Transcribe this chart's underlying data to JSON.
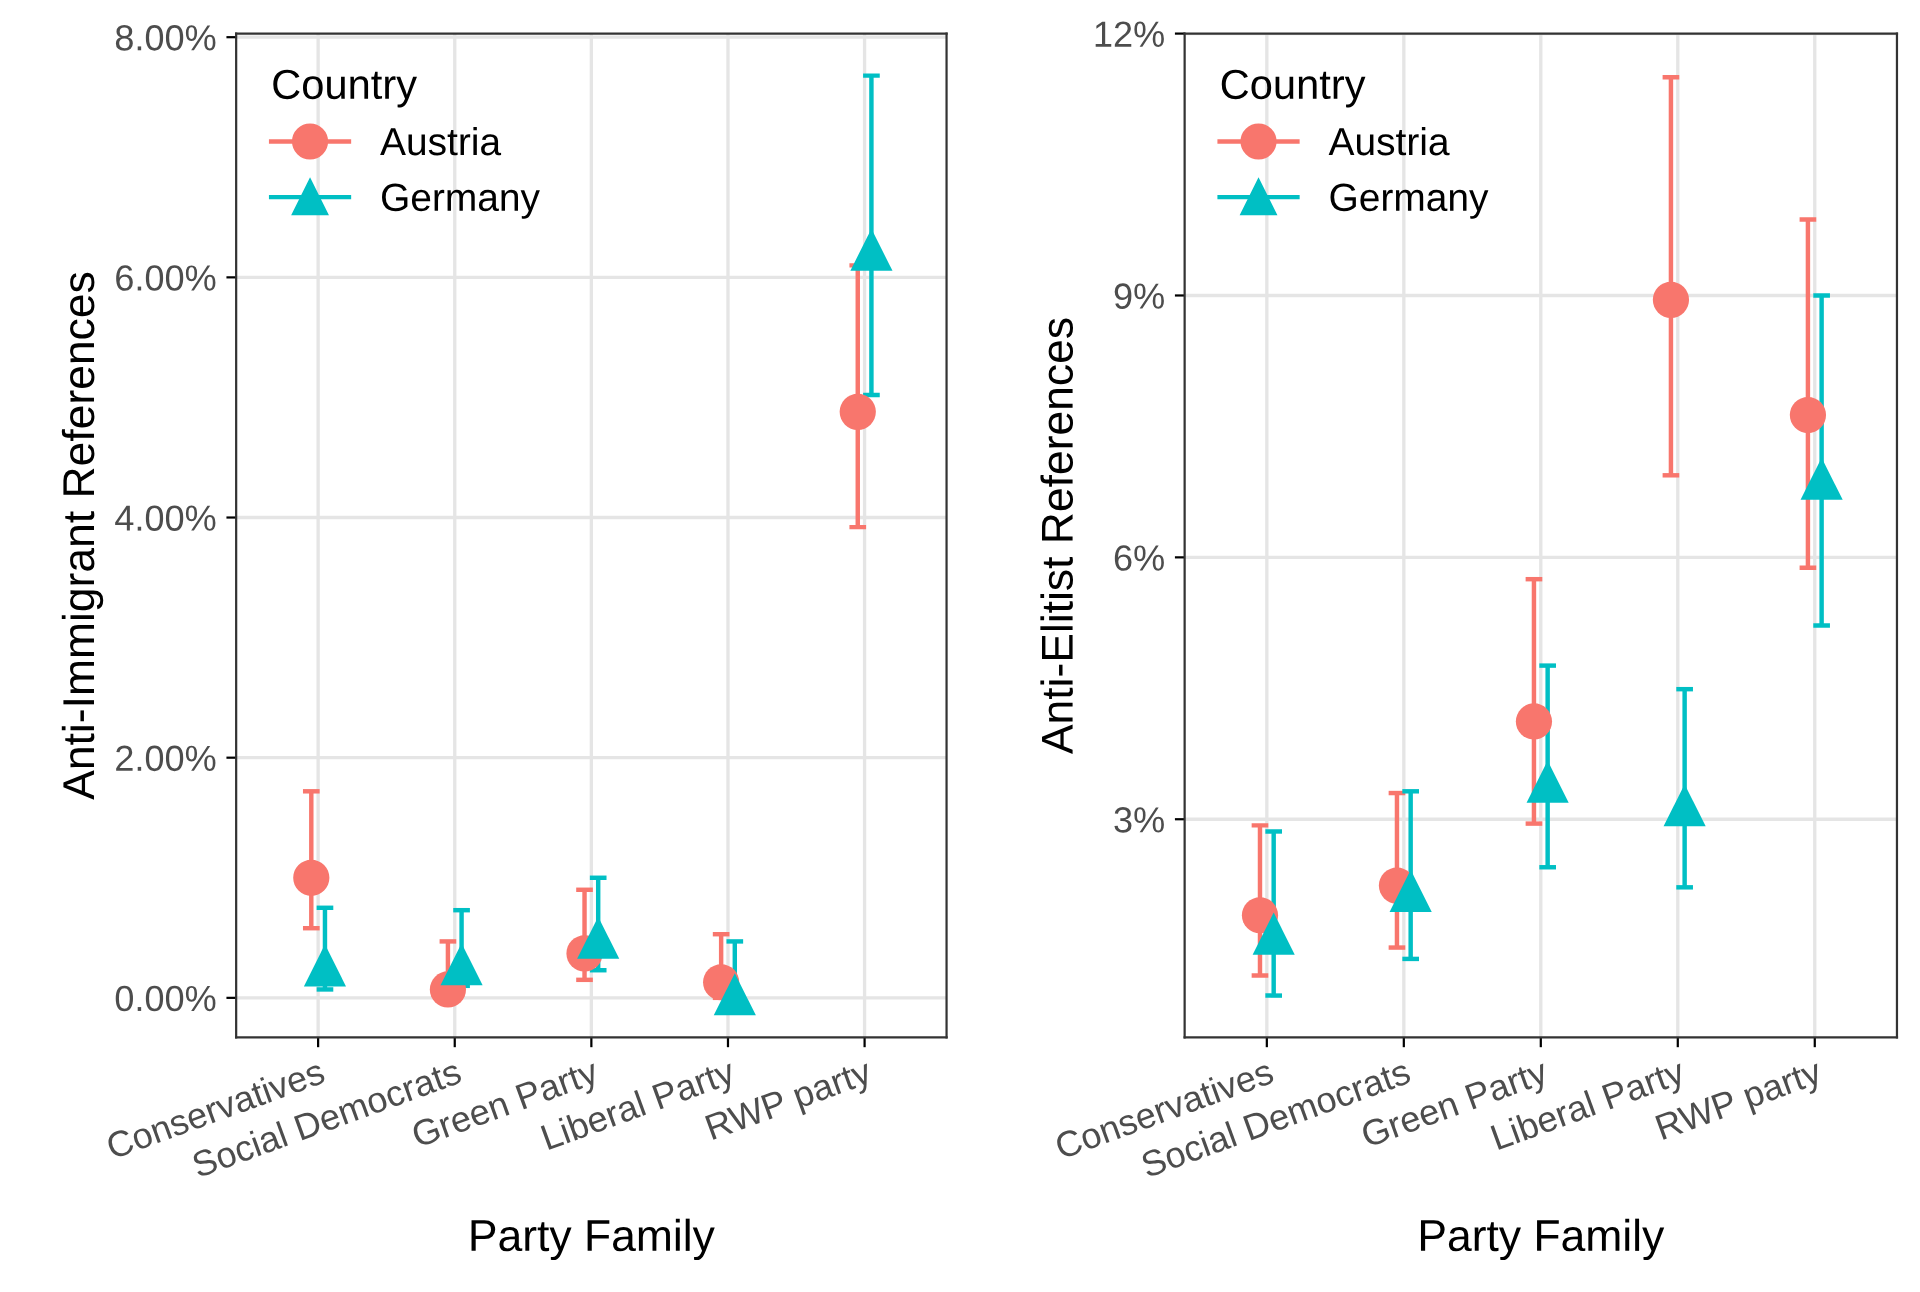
{
  "chart_data": [
    {
      "type": "scatter",
      "xlabel": "Party Family",
      "ylabel": "Anti-Immigrant References",
      "legend_title": "Country",
      "legend": "top left",
      "grid": true,
      "categories": [
        "Conservatives",
        "Social Democrats",
        "Green Party",
        "Liberal Party",
        "RWP party"
      ],
      "ylim": [
        -0.33,
        8.03
      ],
      "yticks": [
        {
          "value": 0,
          "label": "0.00%"
        },
        {
          "value": 2,
          "label": "2.00%"
        },
        {
          "value": 4,
          "label": "4.00%"
        },
        {
          "value": 6,
          "label": "6.00%"
        },
        {
          "value": 8,
          "label": "8.00%"
        }
      ],
      "series": [
        {
          "name": "Austria",
          "color": "#f8766d",
          "marker": "circle",
          "values": [
            1.0,
            0.07,
            0.37,
            0.13,
            4.88
          ],
          "errors": [
            [
              0.58,
              1.72
            ],
            [
              0.07,
              0.47
            ],
            [
              0.15,
              0.9
            ],
            [
              0.0,
              0.53
            ],
            [
              3.92,
              6.1
            ]
          ]
        },
        {
          "name": "Germany",
          "color": "#00bfc4",
          "marker": "triangle",
          "values": [
            0.27,
            0.28,
            0.5,
            0.03,
            6.23
          ],
          "errors": [
            [
              0.07,
              0.75
            ],
            [
              0.1,
              0.73
            ],
            [
              0.23,
              1.0
            ],
            [
              0.0,
              0.47
            ],
            [
              5.02,
              7.68
            ]
          ]
        }
      ]
    },
    {
      "type": "scatter",
      "xlabel": "Party Family",
      "ylabel": "Anti-Elitist References",
      "legend_title": "Country",
      "legend": "top left",
      "grid": true,
      "categories": [
        "Conservatives",
        "Social Democrats",
        "Green Party",
        "Liberal Party",
        "RWP party"
      ],
      "ylim": [
        0.5,
        12.0
      ],
      "yticks": [
        {
          "value": 3,
          "label": "3%"
        },
        {
          "value": 6,
          "label": "6%"
        },
        {
          "value": 9,
          "label": "9%"
        },
        {
          "value": 12,
          "label": "12%"
        }
      ],
      "series": [
        {
          "name": "Austria",
          "color": "#f8766d",
          "marker": "circle",
          "values": [
            1.9,
            2.24,
            4.12,
            8.95,
            7.63
          ],
          "errors": [
            [
              1.21,
              2.93
            ],
            [
              1.53,
              3.3
            ],
            [
              2.95,
              5.75
            ],
            [
              6.94,
              11.5
            ],
            [
              5.88,
              9.87
            ]
          ]
        },
        {
          "name": "Germany",
          "color": "#00bfc4",
          "marker": "triangle",
          "values": [
            1.69,
            2.18,
            3.43,
            3.16,
            6.9
          ],
          "errors": [
            [
              0.98,
              2.86
            ],
            [
              1.4,
              3.32
            ],
            [
              2.45,
              4.76
            ],
            [
              2.22,
              4.49
            ],
            [
              5.22,
              9.0
            ]
          ]
        }
      ]
    }
  ]
}
